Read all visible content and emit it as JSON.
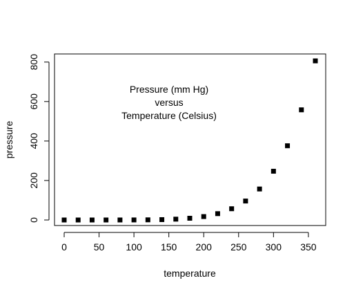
{
  "chart_data": {
    "type": "scatter",
    "title": "",
    "xlabel": "temperature",
    "ylabel": "pressure",
    "xlim": [
      0,
      360
    ],
    "ylim": [
      0,
      806
    ],
    "x_ticks": [
      0,
      50,
      100,
      150,
      200,
      250,
      300,
      350
    ],
    "y_ticks": [
      0,
      200,
      400,
      600,
      800
    ],
    "grid": false,
    "legend": "none",
    "marker": "filled-square",
    "marker_color": "#000000",
    "annotation": {
      "lines": [
        "Pressure (mm Hg)",
        "versus",
        "Temperature (Celsius)"
      ]
    },
    "series": [
      {
        "x": [
          0,
          20,
          40,
          60,
          80,
          100,
          120,
          140,
          160,
          180,
          200,
          220,
          240,
          260,
          280,
          300,
          320,
          340,
          360
        ],
        "y": [
          0.0002,
          0.0012,
          0.006,
          0.03,
          0.09,
          0.27,
          0.75,
          1.85,
          4.2,
          8.8,
          17.3,
          32.1,
          57,
          96,
          157,
          247,
          376,
          558,
          806
        ]
      }
    ]
  }
}
